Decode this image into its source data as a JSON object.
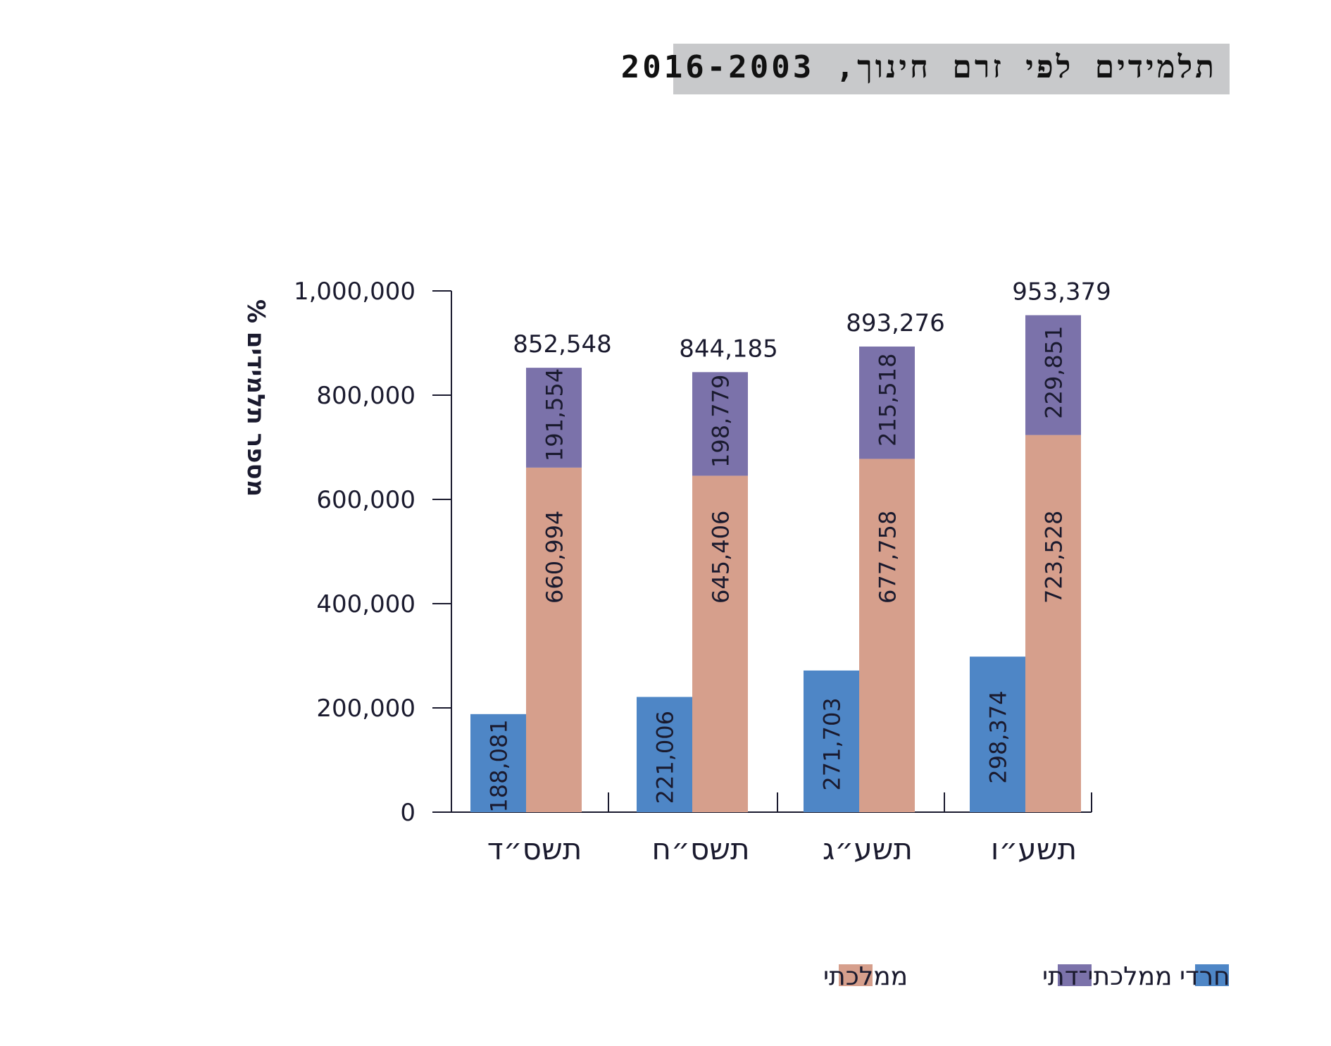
{
  "chart_data": {
    "type": "bar",
    "title": "תלמידים לפי זרם חינוך, 2016-2003",
    "ylabel": "% מספר תלמידים",
    "ylim": [
      0,
      1000000
    ],
    "yticks": [
      "0",
      "200,000",
      "400,000",
      "600,000",
      "800,000",
      "1,000,000"
    ],
    "ytick_values": [
      0,
      200000,
      400000,
      600000,
      800000,
      1000000
    ],
    "categories": [
      "תשס״ד",
      "תשס״ח",
      "תשע״ג",
      "תשע״ו"
    ],
    "series": [
      {
        "name": "חרדי",
        "color": "#4e86c6",
        "values": [
          188081,
          221006,
          271703,
          298374
        ],
        "labels": [
          "188,081",
          "221,006",
          "271,703",
          "298,374"
        ]
      },
      {
        "name": "ממלכתי",
        "color": "#d69f8c",
        "values": [
          660994,
          645406,
          677758,
          723528
        ],
        "labels": [
          "660,994",
          "645,406",
          "677,758",
          "723,528"
        ]
      },
      {
        "name": "ממלכתי־דתי",
        "color": "#7b72aa",
        "values": [
          191554,
          198779,
          215518,
          229851
        ],
        "labels": [
          "191,554",
          "198,779",
          "215,518",
          "229,851"
        ]
      }
    ],
    "totals": [
      852548,
      844185,
      893276,
      953379
    ],
    "total_labels": [
      "852,548",
      "844,185",
      "893,276",
      "953,379"
    ],
    "legend": [
      {
        "name": "חרדי",
        "color": "#4e86c6"
      },
      {
        "name": "ממלכתי־דתי",
        "color": "#7b72aa"
      },
      {
        "name": "ממלכתי",
        "color": "#d69f8c"
      }
    ],
    "grid": false,
    "legend_position": "bottom-right"
  }
}
